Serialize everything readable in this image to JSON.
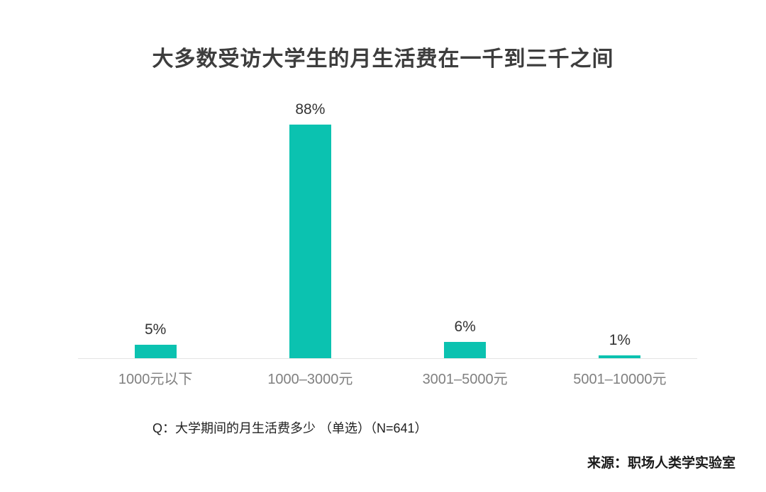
{
  "page": {
    "background": "#ffffff"
  },
  "chart_data": {
    "type": "bar",
    "title": "大多数受访大学生的月生活费在一千到三千之间",
    "categories": [
      "1000元以下",
      "1000–3000元",
      "3001–5000元",
      "5001–10000元"
    ],
    "values": [
      5,
      88,
      6,
      1
    ],
    "value_labels": [
      "5%",
      "88%",
      "6%",
      "1%"
    ],
    "unit": "%",
    "ylim": [
      0,
      100
    ],
    "grid": false,
    "legend": "none",
    "bar_color": "#0bc2b0",
    "axis_line_color": "#e4e4e4",
    "value_label_color": "#333333",
    "tick_label_color": "#808080"
  },
  "footnote": {
    "question": "Q：大学期间的月生活费多少 （单选）（N=641）"
  },
  "source": {
    "label": "来源：职场人类学实验室"
  }
}
